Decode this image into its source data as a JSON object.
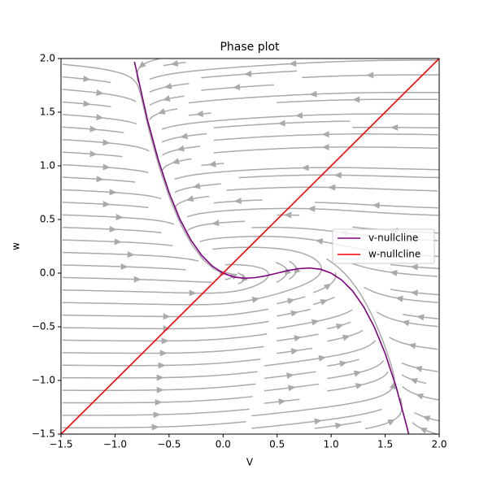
{
  "chart_data": {
    "type": "line",
    "title": "Phase plot",
    "x_label": "V",
    "y_label": "w",
    "series": [
      {
        "name": "v-nullcline",
        "color": "#800080",
        "x": [
          -0.82,
          -0.7,
          -0.6,
          -0.5,
          -0.4,
          -0.3,
          -0.2,
          -0.1,
          0,
          0.1,
          0.2,
          0.3,
          0.4,
          0.5,
          0.6,
          0.7,
          0.8,
          0.9,
          1.0,
          1.1,
          1.2,
          1.3,
          1.4,
          1.5,
          1.6,
          1.7,
          1.72
        ],
        "values": [
          1.97,
          1.428,
          1.056,
          0.75,
          0.504,
          0.312,
          0.168,
          0.066,
          0,
          -0.036,
          -0.048,
          -0.042,
          -0.024,
          0,
          0.024,
          0.042,
          0.048,
          0.036,
          0,
          -0.066,
          -0.168,
          -0.312,
          -0.504,
          -0.75,
          -1.056,
          -1.428,
          -1.51
        ]
      },
      {
        "name": "w-nullcline",
        "color": "#ff0000",
        "x": [
          -1.5,
          2
        ],
        "values": [
          -1.5,
          2
        ]
      }
    ],
    "xlim": [
      -1.5,
      2
    ],
    "ylim": [
      -1.5,
      2
    ],
    "xticks": [
      {
        "value": -1.5,
        "label": "−1.5"
      },
      {
        "value": -1,
        "label": "−1.0"
      },
      {
        "value": -0.5,
        "label": "−0.5"
      },
      {
        "value": 0,
        "label": "0.0"
      },
      {
        "value": 0.5,
        "label": "0.5"
      },
      {
        "value": 1,
        "label": "1.0"
      },
      {
        "value": 1.5,
        "label": "1.5"
      },
      {
        "value": 2,
        "label": "2.0"
      }
    ],
    "yticks": [
      {
        "value": -1.5,
        "label": "−1.5"
      },
      {
        "value": -1,
        "label": "−1.0"
      },
      {
        "value": -0.5,
        "label": "−0.5"
      },
      {
        "value": 0,
        "label": "0.0"
      },
      {
        "value": 0.5,
        "label": "0.5"
      },
      {
        "value": 1,
        "label": "1.0"
      },
      {
        "value": 1.5,
        "label": "1.5"
      },
      {
        "value": 2,
        "label": "2.0"
      }
    ],
    "legend": "right"
  }
}
